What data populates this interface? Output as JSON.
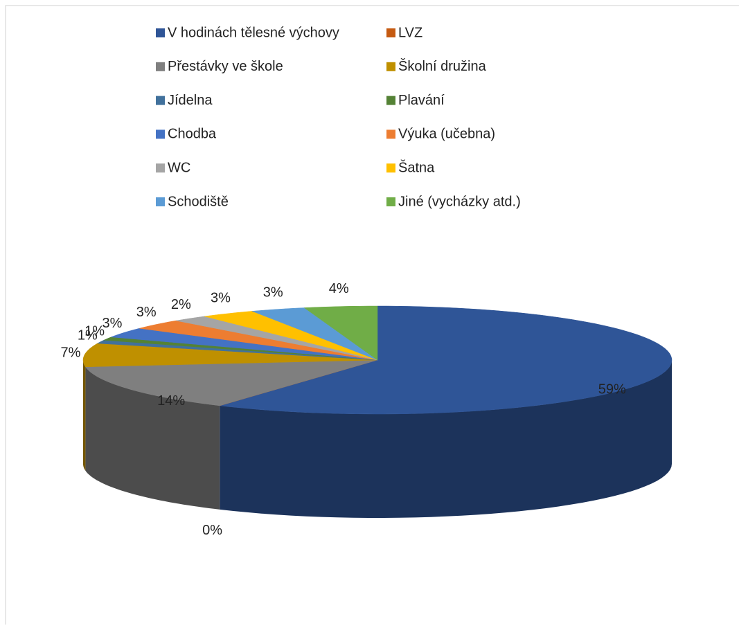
{
  "chart_data": {
    "type": "pie3d",
    "categories": [
      "V hodinách tělesné výchovy",
      "LVZ",
      "Přestávky ve škole",
      "Školní družina",
      "Jídelna",
      "Plavání",
      "Chodba",
      "Výuka (učebna)",
      "WC",
      "Šatna",
      "Schodiště",
      "Jiné (vycházky atd.)"
    ],
    "values": [
      59,
      0,
      14,
      7,
      1,
      1,
      3,
      3,
      2,
      3,
      3,
      4
    ],
    "value_labels": [
      "59%",
      "0%",
      "14%",
      "7%",
      "1%",
      "1%",
      "3%",
      "3%",
      "2%",
      "3%",
      "3%",
      "4%"
    ],
    "colors": [
      "#2f5597",
      "#c55a11",
      "#7f7f7f",
      "#bf9000",
      "#41719c",
      "#548235",
      "#4472c4",
      "#ed7d31",
      "#a5a5a5",
      "#ffc000",
      "#5b9bd5",
      "#70ad47"
    ],
    "legend": "top"
  }
}
